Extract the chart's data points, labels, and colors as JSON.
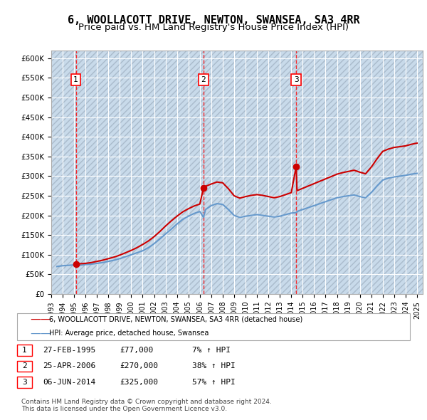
{
  "title": "6, WOOLLACOTT DRIVE, NEWTON, SWANSEA, SA3 4RR",
  "subtitle": "Price paid vs. HM Land Registry's House Price Index (HPI)",
  "title_fontsize": 11,
  "subtitle_fontsize": 9.5,
  "bg_color": "#ddeeff",
  "plot_bg_color": "#ddeeff",
  "hatch_color": "#bbccdd",
  "grid_color": "#ffffff",
  "ylim": [
    0,
    620000
  ],
  "yticks": [
    0,
    50000,
    100000,
    150000,
    200000,
    250000,
    300000,
    350000,
    400000,
    450000,
    500000,
    550000,
    600000
  ],
  "ytick_labels": [
    "£0",
    "£50K",
    "£100K",
    "£150K",
    "£200K",
    "£250K",
    "£300K",
    "£350K",
    "£400K",
    "£450K",
    "£500K",
    "£550K",
    "£600K"
  ],
  "xlim_start": 1993.0,
  "xlim_end": 2025.5,
  "xtick_years": [
    1993,
    1994,
    1995,
    1996,
    1997,
    1998,
    1999,
    2000,
    2001,
    2002,
    2003,
    2004,
    2005,
    2006,
    2007,
    2008,
    2009,
    2010,
    2011,
    2012,
    2013,
    2014,
    2015,
    2016,
    2017,
    2018,
    2019,
    2020,
    2021,
    2022,
    2023,
    2024,
    2025
  ],
  "purchase_points": [
    {
      "year": 1995.15,
      "price": 77000,
      "label": "1"
    },
    {
      "year": 2006.32,
      "price": 270000,
      "label": "2"
    },
    {
      "year": 2014.43,
      "price": 325000,
      "label": "3"
    }
  ],
  "purchase_dates": [
    "27-FEB-1995",
    "25-APR-2006",
    "06-JUN-2014"
  ],
  "purchase_prices": [
    "£77,000",
    "£270,000",
    "£325,000"
  ],
  "purchase_hpi": [
    "7% ↑ HPI",
    "38% ↑ HPI",
    "57% ↑ HPI"
  ],
  "red_line_color": "#cc0000",
  "blue_line_color": "#6699cc",
  "legend_label_red": "6, WOOLLACOTT DRIVE, NEWTON, SWANSEA, SA3 4RR (detached house)",
  "legend_label_blue": "HPI: Average price, detached house, Swansea",
  "footer_text": "Contains HM Land Registry data © Crown copyright and database right 2024.\nThis data is licensed under the Open Government Licence v3.0.",
  "hpi_data": {
    "years": [
      1993.5,
      1994.0,
      1994.5,
      1995.0,
      1995.15,
      1995.5,
      1996.0,
      1996.5,
      1997.0,
      1997.5,
      1998.0,
      1998.5,
      1999.0,
      1999.5,
      2000.0,
      2000.5,
      2001.0,
      2001.5,
      2002.0,
      2002.5,
      2003.0,
      2003.5,
      2004.0,
      2004.5,
      2005.0,
      2005.5,
      2006.0,
      2006.32,
      2006.5,
      2007.0,
      2007.5,
      2008.0,
      2008.5,
      2009.0,
      2009.5,
      2010.0,
      2010.5,
      2011.0,
      2011.5,
      2012.0,
      2012.5,
      2013.0,
      2013.5,
      2014.0,
      2014.43,
      2014.5,
      2015.0,
      2015.5,
      2016.0,
      2016.5,
      2017.0,
      2017.5,
      2018.0,
      2018.5,
      2019.0,
      2019.5,
      2020.0,
      2020.5,
      2021.0,
      2021.5,
      2022.0,
      2022.5,
      2023.0,
      2023.5,
      2024.0,
      2024.5,
      2025.0
    ],
    "hpi_values": [
      70000,
      72000,
      73000,
      74000,
      72000,
      73000,
      75000,
      76000,
      78000,
      80000,
      83000,
      86000,
      90000,
      95000,
      100000,
      105000,
      110000,
      118000,
      128000,
      140000,
      153000,
      165000,
      178000,
      190000,
      198000,
      205000,
      210000,
      195000,
      215000,
      225000,
      230000,
      228000,
      215000,
      200000,
      195000,
      198000,
      200000,
      202000,
      200000,
      198000,
      196000,
      198000,
      202000,
      206000,
      207000,
      210000,
      215000,
      220000,
      225000,
      230000,
      235000,
      240000,
      245000,
      248000,
      250000,
      252000,
      248000,
      245000,
      258000,
      275000,
      290000,
      295000,
      298000,
      300000,
      302000,
      305000,
      307000
    ],
    "red_values": [
      null,
      null,
      null,
      null,
      77000,
      77000,
      78000,
      80000,
      83000,
      86000,
      90000,
      94000,
      99000,
      105000,
      111000,
      118000,
      126000,
      135000,
      146000,
      159000,
      173000,
      186000,
      198000,
      209000,
      217000,
      224000,
      229000,
      270000,
      274000,
      280000,
      285000,
      283000,
      268000,
      250000,
      244000,
      248000,
      251000,
      253000,
      251000,
      248000,
      245000,
      248000,
      253000,
      258000,
      325000,
      263000,
      269000,
      275000,
      281000,
      287000,
      293000,
      299000,
      305000,
      309000,
      312000,
      315000,
      310000,
      306000,
      323000,
      344000,
      363000,
      369000,
      373000,
      375000,
      377000,
      381000,
      384000
    ]
  }
}
